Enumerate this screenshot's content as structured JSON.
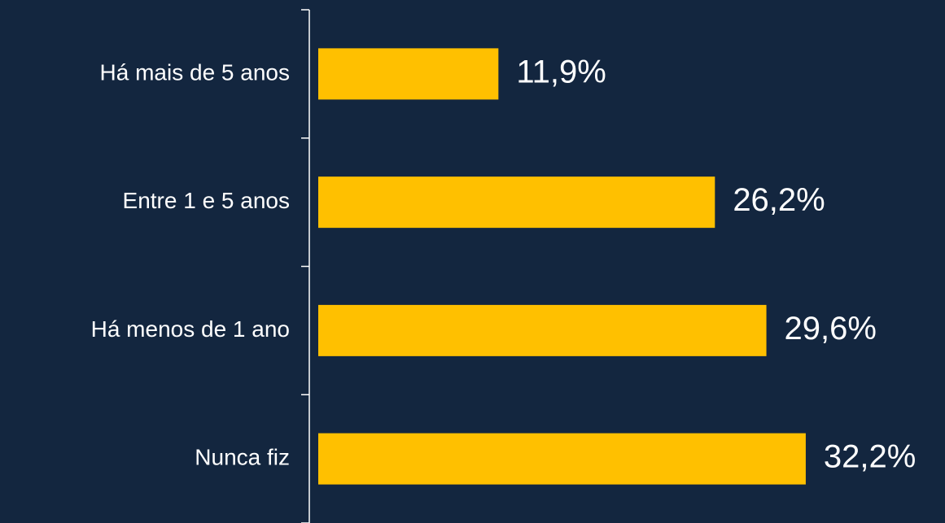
{
  "chart_data": {
    "type": "bar",
    "orientation": "horizontal",
    "categories": [
      "Há mais de 5 anos",
      "Entre 1 e 5 anos",
      "Há menos de 1 ano",
      "Nunca fiz"
    ],
    "values": [
      11.9,
      26.2,
      29.6,
      32.2
    ],
    "value_labels": [
      "11,9%",
      "26,2%",
      "29,6%",
      "32,2%"
    ],
    "color": "#ffc000"
  }
}
